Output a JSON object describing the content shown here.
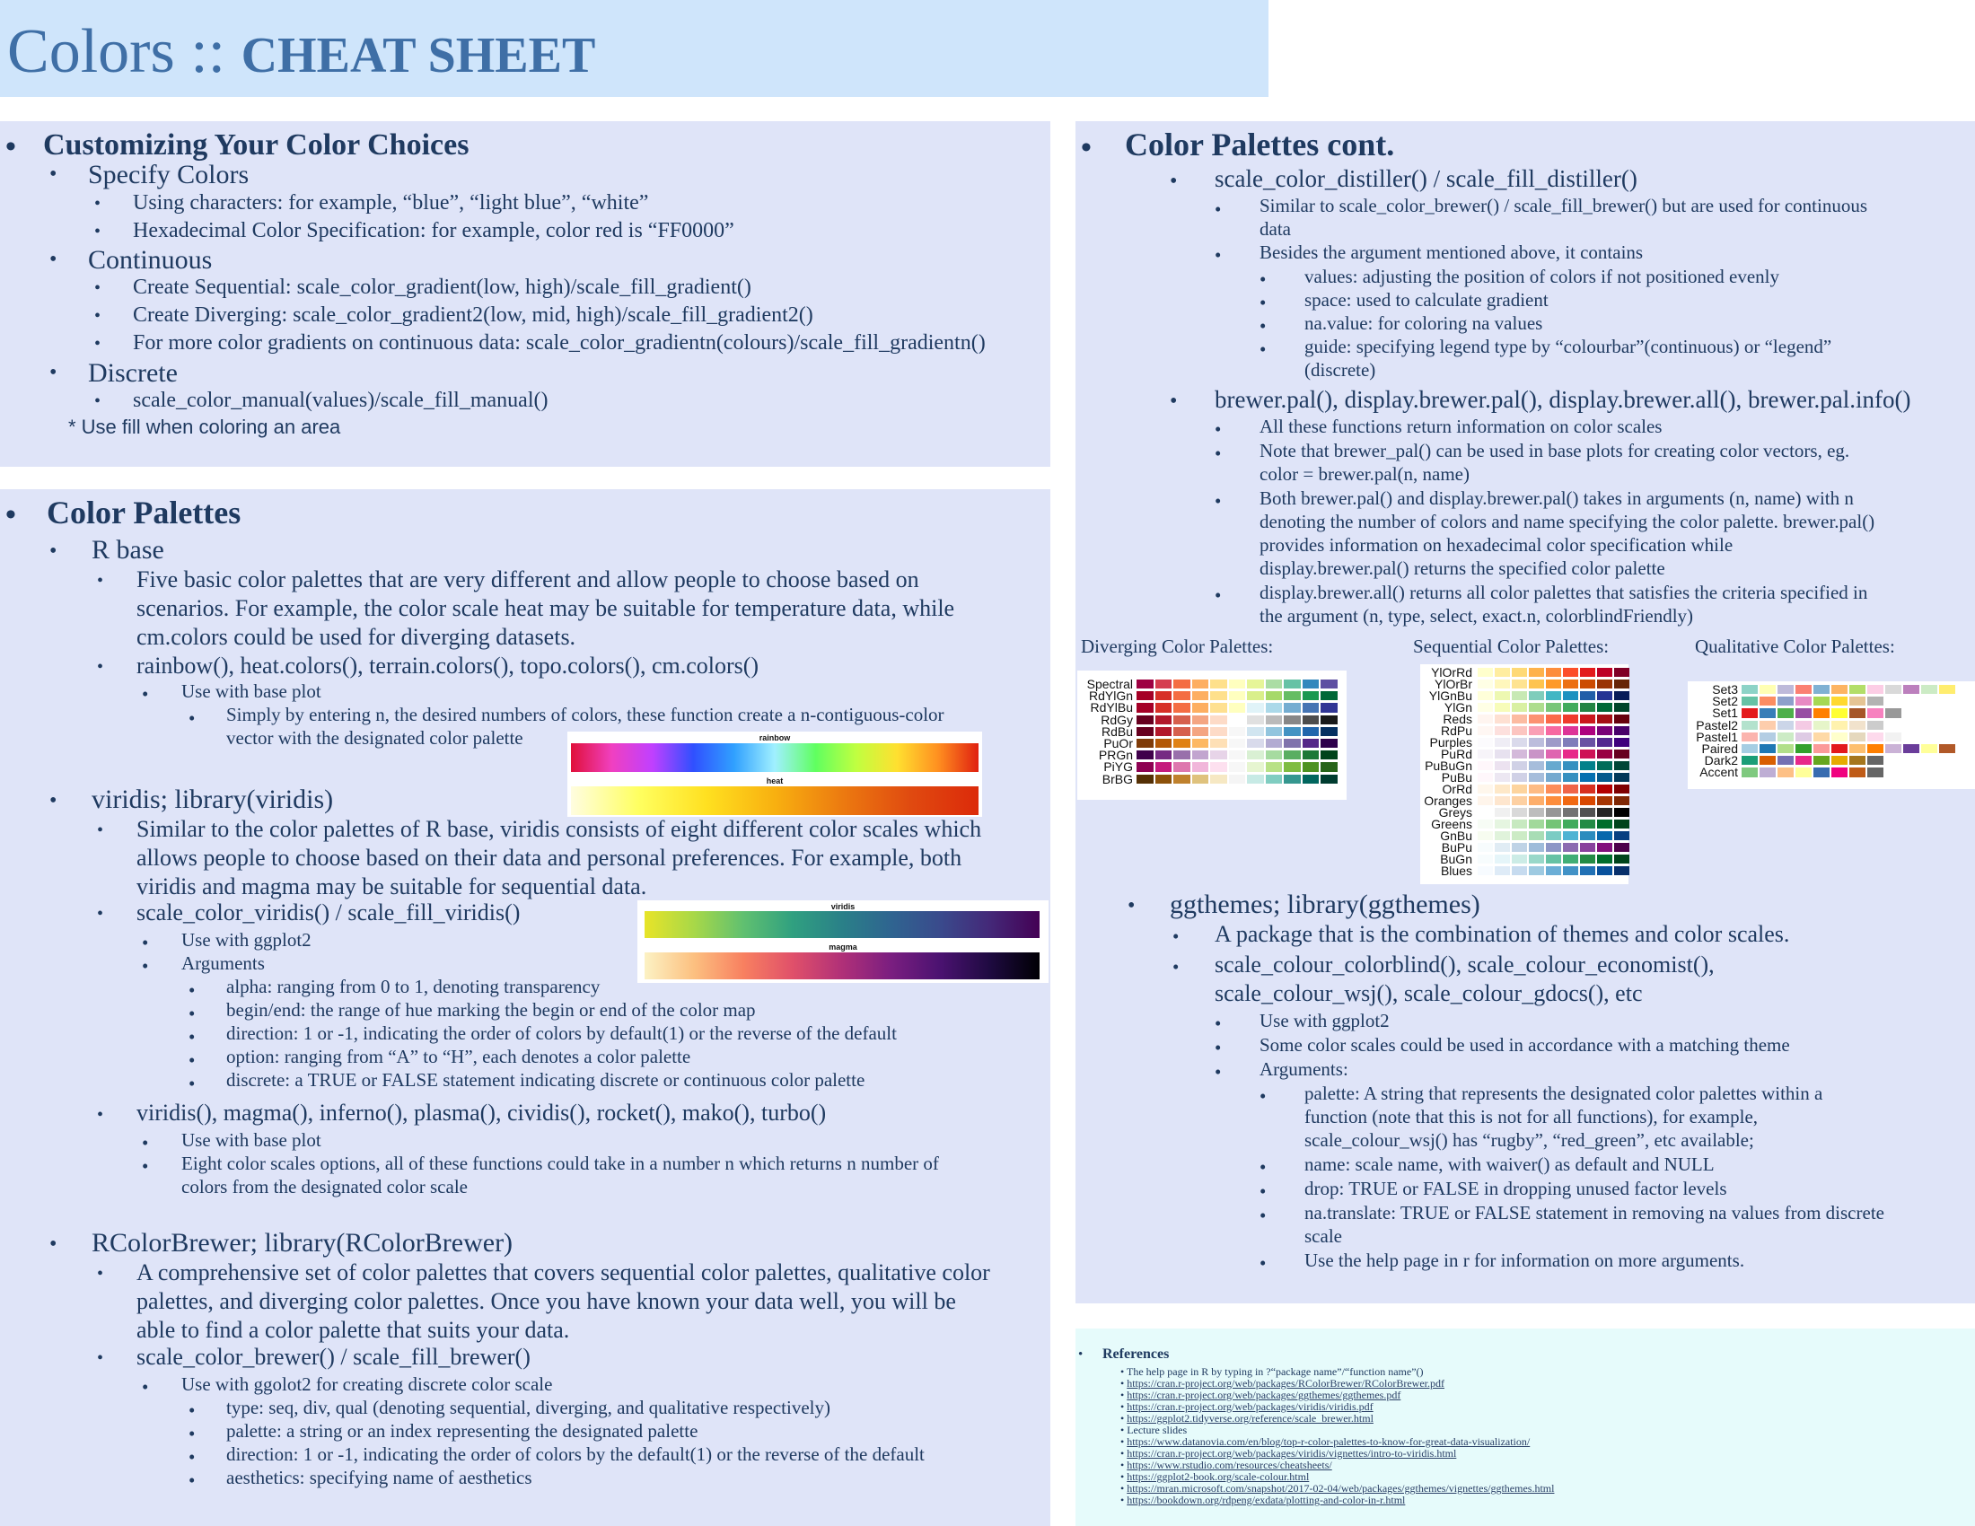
{
  "header": {
    "title_main": "Colors :: ",
    "title_bold": "CHEAT SHEET"
  },
  "customizing": {
    "heading": "Customizing Your Color Choices",
    "specify": "Specify Colors",
    "specify_1": "Using characters: for example, “blue”, “light blue”, “white”",
    "specify_2": "Hexadecimal Color Specification: for example, color red is “FF0000”",
    "continuous": "Continuous",
    "cont_1": "Create Sequential: scale_color_gradient(low, high)/scale_fill_gradient()",
    "cont_2": "Create Diverging: scale_color_gradient2(low, mid, high)/scale_fill_gradient2()",
    "cont_3": "For more color gradients on continuous data: scale_color_gradientn(colours)/scale_fill_gradientn()",
    "discrete": "Discrete",
    "disc_1": "scale_color_manual(values)/scale_fill_manual()",
    "note": "* Use fill when coloring an area"
  },
  "palettes": {
    "heading": "Color Palettes",
    "rbase": "R base",
    "rbase_desc_1": "Five basic color palettes that are very different and allow people to choose based on",
    "rbase_desc_2": "scenarios. For example, the color scale heat may be suitable for temperature data, while",
    "rbase_desc_3": "cm.colors could be used for diverging datasets.",
    "rbase_funcs": "rainbow(), heat.colors(), terrain.colors(), topo.colors(), cm.colors()",
    "rbase_use": "Use with base plot",
    "rbase_n_1": "Simply by entering n, the desired numbers of colors, these function create a n-contiguous-color",
    "rbase_n_2": "vector with the designated color palette",
    "img_rainbow": "rainbow",
    "img_heat": "heat",
    "viridis": "viridis; library(viridis)",
    "vir_desc_1": "Similar to the color palettes of R base, viridis consists of eight different color scales which",
    "vir_desc_2": "allows people to choose based on their data and personal preferences. For example, both",
    "vir_desc_3": "viridis and magma may be suitable for sequential data.",
    "vir_scale": "scale_color_viridis() / scale_fill_viridis()",
    "vir_use": "Use with ggplot2",
    "vir_args": "Arguments",
    "vir_a1": "alpha: ranging from 0 to 1, denoting transparency",
    "vir_a2": "begin/end: the range of hue marking the begin or end of the color map",
    "vir_a3": "direction: 1 or -1, indicating the order of colors by default(1) or the reverse of the default",
    "vir_a4": "option: ranging from “A” to “H”, each denotes a color palette",
    "vir_a5": "discrete: a TRUE or FALSE statement indicating discrete or continuous color palette",
    "img_viridis": "viridis",
    "img_magma": "magma",
    "vir_funcs": "viridis(), magma(), inferno(), plasma(), cividis(), rocket(), mako(), turbo()",
    "vir_f_use": "Use with base plot",
    "vir_f_1": "Eight color scales options, all of these functions could take in a number n which returns n number of",
    "vir_f_2": "colors from the designated color scale",
    "rcb": "RColorBrewer; library(RColorBrewer)",
    "rcb_desc_1": "A comprehensive set of color palettes that covers sequential color palettes, qualitative color",
    "rcb_desc_2": "palettes, and diverging color palettes. Once you have known your data well, you will be",
    "rcb_desc_3": "able to find a color palette that suits your data.",
    "rcb_scale": "scale_color_brewer() / scale_fill_brewer()",
    "rcb_use": "Use with ggolot2 for creating discrete color scale",
    "rcb_a1": "type: seq, div, qual (denoting sequential, diverging, and qualitative respectively)",
    "rcb_a2": "palette: a string or an index representing the designated palette",
    "rcb_a3": "direction: 1 or -1, indicating the order of colors by the default(1) or the reverse of the default",
    "rcb_a4": "aesthetics: specifying name of aesthetics"
  },
  "cont": {
    "heading": "Color Palettes cont.",
    "distiller": "scale_color_distiller() / scale_fill_distiller()",
    "dist_1a": "Similar to scale_color_brewer() / scale_fill_brewer() but are used for continuous",
    "dist_1b": "data",
    "dist_2": "Besides the argument mentioned above, it contains",
    "dist_a1": "values: adjusting the position of colors if not positioned evenly",
    "dist_a2": "space: used to calculate gradient",
    "dist_a3": "na.value: for coloring na values",
    "dist_a4a": "guide: specifying legend type by “colourbar”(continuous) or “legend”",
    "dist_a4b": "(discrete)",
    "brewer": "brewer.pal(), display.brewer.pal(), display.brewer.all(), brewer.pal.info()",
    "br_1": "All these functions return information on color scales",
    "br_2a": "Note that brewer_pal() can be used in base plots for creating color vectors, eg.",
    "br_2b": "color  = brewer.pal(n, name)",
    "br_3a": "Both brewer.pal() and display.brewer.pal() takes in arguments (n, name) with n",
    "br_3b": "denoting the number of colors and name specifying the color palette. brewer.pal()",
    "br_3c": "provides information on hexadecimal color specification while",
    "br_3d": "display.brewer.pal() returns the specified color palette",
    "br_4a": "display.brewer.all() returns all color palettes that satisfies the criteria specified in",
    "br_4b": "the argument (n, type, select, exact.n, colorblindFriendly)",
    "cap_div": "Diverging Color Palettes:",
    "cap_seq": "Sequential Color Palettes:",
    "cap_qual": "Qualitative Color Palettes:",
    "div_names": [
      "Spectral",
      "RdYlGn",
      "RdYlBu",
      "RdGy",
      "RdBu",
      "PuOr",
      "PRGn",
      "PiYG",
      "BrBG"
    ],
    "seq_names": [
      "YlOrRd",
      "YlOrBr",
      "YlGnBu",
      "YlGn",
      "Reds",
      "RdPu",
      "Purples",
      "PuRd",
      "PuBuGn",
      "PuBu",
      "OrRd",
      "Oranges",
      "Greys",
      "Greens",
      "GnBu",
      "BuPu",
      "BuGn",
      "Blues"
    ],
    "qual_names": [
      "Set3",
      "Set2",
      "Set1",
      "Pastel2",
      "Pastel1",
      "Paired",
      "Dark2",
      "Accent"
    ],
    "ggthemes": "ggthemes; library(ggthemes)",
    "gg_1": "A package that is the combination of themes and color scales.",
    "gg_2a": "scale_colour_colorblind(), scale_colour_economist(),",
    "gg_2b": "scale_colour_wsj(), scale_colour_gdocs(), etc",
    "gg_use": "Use with ggplot2",
    "gg_theme": "Some color scales could be used in accordance with a matching theme",
    "gg_args": "Arguments:",
    "gg_a1a": "palette: A string that represents the designated color palettes within a",
    "gg_a1b": "function (note that this is not for all functions), for example,",
    "gg_a1c": "scale_colour_wsj() has “rugby”, “red_green”, etc available;",
    "gg_a2": "name: scale name, with waiver() as default and NULL",
    "gg_a3": "drop: TRUE or FALSE in dropping unused factor levels",
    "gg_a4a": "na.translate: TRUE or FALSE statement in removing na values from discrete",
    "gg_a4b": "scale",
    "gg_a5": "Use the help page in r for information on more arguments."
  },
  "references": {
    "heading": "References",
    "items": [
      "The help page in R by typing in ?“package name”/“function name”()",
      "https://cran.r-project.org/web/packages/RColorBrewer/RColorBrewer.pdf",
      "https://cran.r-project.org/web/packages/ggthemes/ggthemes.pdf",
      "https://cran.r-project.org/web/packages/viridis/viridis.pdf",
      "https://ggplot2.tidyverse.org/reference/scale_brewer.html",
      "Lecture slides",
      "https://www.datanovia.com/en/blog/top-r-color-palettes-to-know-for-great-data-visualization/",
      "https://cran.r-project.org/web/packages/viridis/vignettes/intro-to-viridis.html",
      "https://www.rstudio.com/resources/cheatsheets/",
      "https://ggplot2-book.org/scale-colour.html",
      "https://mran.microsoft.com/snapshot/2017-02-04/web/packages/ggthemes/vignettes/ggthemes.html",
      "https://bookdown.org/rdpeng/exdata/plotting-and-color-in-r.html"
    ]
  },
  "colors": {
    "header_bg": "#cfe5fb",
    "panel_bg": "#dfe4f8",
    "refs_bg": "#e6fbfb",
    "text": "#1f3a60",
    "title": "#3f6fa6"
  }
}
